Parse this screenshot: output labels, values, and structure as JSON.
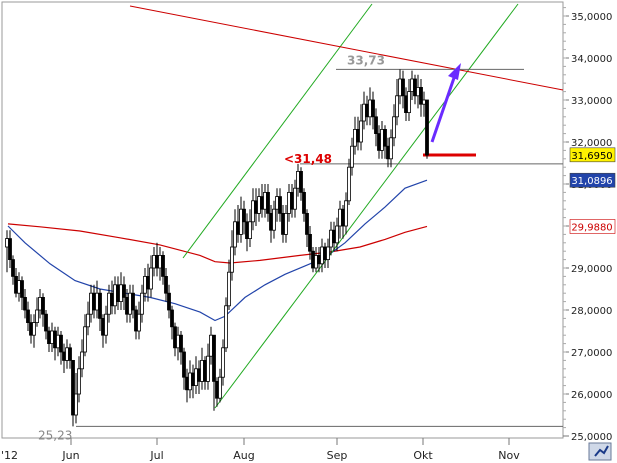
{
  "chart_data": {
    "type": "candlestick",
    "title": "",
    "xlabel": "",
    "ylabel": "",
    "ylim": [
      24.9,
      35.4
    ],
    "y_ticks": [
      {
        "value": 25,
        "label": "25,0000"
      },
      {
        "value": 26,
        "label": "26,0000"
      },
      {
        "value": 27,
        "label": "27,0000"
      },
      {
        "value": 28,
        "label": "28,0000"
      },
      {
        "value": 29,
        "label": "29,0000"
      },
      {
        "value": 30,
        "label": "30,0000"
      },
      {
        "value": 31,
        "label": "31,0000"
      },
      {
        "value": 32,
        "label": "32,0000"
      },
      {
        "value": 33,
        "label": "33,0000"
      },
      {
        "value": 34,
        "label": "34,0000"
      },
      {
        "value": 35,
        "label": "35,0000"
      }
    ],
    "x_ticks": [
      "'12",
      "Jun",
      "Jul",
      "Aug",
      "Sep",
      "Okt",
      "Nov"
    ],
    "badges": [
      {
        "name": "last-price",
        "label": "31,6950",
        "value": 31.695,
        "bg": "#fff200",
        "fg": "#000000"
      },
      {
        "name": "ma-short",
        "label": "31,0896",
        "value": 31.0896,
        "bg": "#2244aa",
        "fg": "#ffffff"
      },
      {
        "name": "ma-long",
        "label": "29,9880",
        "value": 29.988,
        "bg": "#ffffff",
        "fg": "#cc0000"
      }
    ],
    "annotations": [
      {
        "name": "high-label",
        "text": "33,73",
        "value": 33.73,
        "color": "#999999"
      },
      {
        "name": "support-label",
        "text": "<31,48",
        "value": 31.48,
        "color": "#dd0000"
      },
      {
        "name": "low-label",
        "text": "25,23",
        "value": 25.23,
        "color": "#888888"
      }
    ],
    "series_colors": {
      "candles": "#000000",
      "ma_short": "#2244aa",
      "ma_long": "#cc0000",
      "channel": "#22aa22",
      "trend": "#cc0000",
      "arrow": "#6a2bff",
      "support": "#dd0000"
    },
    "ma_short": [
      [
        8,
        30.0
      ],
      [
        25,
        29.6
      ],
      [
        50,
        29.1
      ],
      [
        75,
        28.7
      ],
      [
        100,
        28.5
      ],
      [
        125,
        28.4
      ],
      [
        150,
        28.3
      ],
      [
        175,
        28.15
      ],
      [
        200,
        27.95
      ],
      [
        215,
        27.75
      ],
      [
        225,
        27.85
      ],
      [
        245,
        28.3
      ],
      [
        265,
        28.6
      ],
      [
        285,
        28.85
      ],
      [
        305,
        29.05
      ],
      [
        325,
        29.25
      ],
      [
        345,
        29.6
      ],
      [
        365,
        30.05
      ],
      [
        385,
        30.45
      ],
      [
        405,
        30.9
      ],
      [
        427,
        31.09
      ]
    ],
    "ma_long": [
      [
        8,
        30.05
      ],
      [
        40,
        29.98
      ],
      [
        80,
        29.88
      ],
      [
        120,
        29.72
      ],
      [
        160,
        29.55
      ],
      [
        200,
        29.3
      ],
      [
        215,
        29.15
      ],
      [
        230,
        29.12
      ],
      [
        260,
        29.18
      ],
      [
        300,
        29.3
      ],
      [
        330,
        29.38
      ],
      [
        360,
        29.5
      ],
      [
        385,
        29.68
      ],
      [
        405,
        29.85
      ],
      [
        427,
        29.99
      ]
    ],
    "candles": [
      [
        7,
        29.5,
        29.7,
        29.9,
        28.9
      ],
      [
        10,
        29.7,
        29.2,
        29.9,
        29.0
      ],
      [
        13,
        29.2,
        28.8,
        29.3,
        28.6
      ],
      [
        16,
        28.8,
        28.4,
        29.0,
        28.3
      ],
      [
        19,
        28.4,
        28.7,
        28.9,
        28.2
      ],
      [
        22,
        28.7,
        28.3,
        28.8,
        28.0
      ],
      [
        25,
        28.3,
        28.0,
        28.5,
        27.8
      ],
      [
        28,
        28.0,
        27.7,
        28.2,
        27.5
      ],
      [
        31,
        27.7,
        27.4,
        27.9,
        27.2
      ],
      [
        34,
        27.4,
        27.7,
        27.9,
        27.1
      ],
      [
        37,
        27.7,
        28.0,
        28.3,
        27.6
      ],
      [
        40,
        28.0,
        28.3,
        28.5,
        27.8
      ],
      [
        43,
        28.3,
        27.9,
        28.4,
        27.6
      ],
      [
        46,
        27.9,
        27.5,
        28.0,
        27.3
      ],
      [
        49,
        27.5,
        27.2,
        27.6,
        27.0
      ],
      [
        52,
        27.2,
        27.5,
        27.7,
        27.0
      ],
      [
        55,
        27.5,
        27.1,
        27.6,
        26.8
      ],
      [
        58,
        27.1,
        27.4,
        27.6,
        26.9
      ],
      [
        61,
        27.4,
        27.0,
        27.5,
        26.7
      ],
      [
        64,
        27.0,
        26.8,
        27.2,
        26.5
      ],
      [
        67,
        26.8,
        27.1,
        27.3,
        26.6
      ],
      [
        70,
        27.1,
        26.8,
        27.2,
        26.6
      ],
      [
        73,
        26.8,
        25.5,
        26.8,
        25.23
      ],
      [
        76,
        25.5,
        26.0,
        26.5,
        25.3
      ],
      [
        79,
        26.0,
        26.6,
        26.9,
        25.8
      ],
      [
        82,
        26.6,
        27.0,
        27.3,
        26.4
      ],
      [
        85,
        27.0,
        27.6,
        27.9,
        26.9
      ],
      [
        88,
        27.6,
        27.9,
        28.2,
        27.4
      ],
      [
        91,
        27.9,
        28.4,
        28.6,
        27.7
      ],
      [
        94,
        28.4,
        28.0,
        28.6,
        27.8
      ],
      [
        97,
        28.0,
        28.4,
        28.7,
        27.8
      ],
      [
        100,
        28.4,
        27.8,
        28.5,
        27.5
      ],
      [
        103,
        27.8,
        27.4,
        27.9,
        27.1
      ],
      [
        106,
        27.4,
        27.9,
        28.1,
        27.2
      ],
      [
        109,
        27.9,
        28.4,
        28.6,
        27.7
      ],
      [
        112,
        28.4,
        28.1,
        28.7,
        27.9
      ],
      [
        115,
        28.1,
        28.6,
        28.8,
        27.9
      ],
      [
        118,
        28.6,
        28.2,
        28.8,
        28.0
      ],
      [
        121,
        28.2,
        28.6,
        28.9,
        28.0
      ],
      [
        124,
        28.6,
        28.3,
        28.8,
        28.0
      ],
      [
        127,
        28.3,
        27.9,
        28.5,
        27.7
      ],
      [
        130,
        27.9,
        28.4,
        28.6,
        27.7
      ],
      [
        133,
        28.4,
        28.0,
        28.6,
        27.8
      ],
      [
        136,
        28.0,
        27.5,
        28.1,
        27.3
      ],
      [
        139,
        27.5,
        27.9,
        28.2,
        27.3
      ],
      [
        142,
        27.9,
        28.4,
        28.6,
        27.7
      ],
      [
        145,
        28.4,
        28.8,
        29.0,
        28.2
      ],
      [
        148,
        28.8,
        28.5,
        29.1,
        28.2
      ],
      [
        151,
        28.5,
        29.0,
        29.3,
        28.3
      ],
      [
        154,
        29.0,
        29.3,
        29.5,
        28.8
      ],
      [
        157,
        29.3,
        29.0,
        29.6,
        28.8
      ],
      [
        160,
        29.0,
        29.3,
        29.5,
        28.7
      ],
      [
        163,
        29.3,
        28.8,
        29.4,
        28.6
      ],
      [
        166,
        28.8,
        28.4,
        29.0,
        28.2
      ],
      [
        169,
        28.4,
        28.0,
        28.6,
        27.8
      ],
      [
        172,
        28.0,
        27.6,
        28.1,
        27.3
      ],
      [
        175,
        27.6,
        27.1,
        27.7,
        26.9
      ],
      [
        178,
        27.1,
        27.4,
        27.6,
        26.8
      ],
      [
        181,
        27.4,
        27.0,
        27.5,
        26.7
      ],
      [
        184,
        27.0,
        26.4,
        27.1,
        26.1
      ],
      [
        187,
        26.4,
        26.1,
        26.6,
        25.8
      ],
      [
        190,
        26.1,
        26.5,
        26.8,
        25.9
      ],
      [
        193,
        26.5,
        26.2,
        26.7,
        25.9
      ],
      [
        196,
        26.2,
        26.6,
        26.9,
        26.0
      ],
      [
        199,
        26.6,
        26.3,
        26.8,
        26.0
      ],
      [
        202,
        26.3,
        26.8,
        27.1,
        26.1
      ],
      [
        205,
        26.8,
        26.3,
        26.9,
        26.1
      ],
      [
        208,
        26.3,
        26.9,
        27.2,
        26.1
      ],
      [
        211,
        26.9,
        27.4,
        27.6,
        26.7
      ],
      [
        214,
        27.4,
        26.3,
        27.4,
        25.6
      ],
      [
        217,
        26.3,
        25.9,
        26.4,
        25.7
      ],
      [
        220,
        25.9,
        26.4,
        26.6,
        25.8
      ],
      [
        223,
        26.4,
        27.1,
        27.3,
        26.2
      ],
      [
        226,
        27.1,
        28.1,
        28.3,
        27.0
      ],
      [
        229,
        28.1,
        28.9,
        29.2,
        28.0
      ],
      [
        232,
        28.9,
        29.5,
        29.9,
        28.7
      ],
      [
        235,
        29.5,
        30.1,
        30.4,
        29.3
      ],
      [
        238,
        30.1,
        29.8,
        30.5,
        29.6
      ],
      [
        241,
        29.8,
        30.4,
        30.7,
        29.6
      ],
      [
        244,
        30.4,
        30.1,
        30.6,
        29.8
      ],
      [
        247,
        30.1,
        29.7,
        30.3,
        29.4
      ],
      [
        250,
        29.7,
        30.1,
        30.4,
        29.5
      ],
      [
        253,
        30.1,
        30.6,
        30.9,
        29.9
      ],
      [
        256,
        30.6,
        30.3,
        30.9,
        30.0
      ],
      [
        259,
        30.3,
        30.7,
        30.9,
        30.1
      ],
      [
        262,
        30.7,
        30.4,
        31.0,
        30.2
      ],
      [
        265,
        30.4,
        30.8,
        31.0,
        30.2
      ],
      [
        268,
        30.8,
        30.3,
        31.0,
        30.1
      ],
      [
        271,
        30.3,
        29.9,
        30.5,
        29.6
      ],
      [
        274,
        29.9,
        30.4,
        30.6,
        29.7
      ],
      [
        277,
        30.4,
        30.7,
        30.9,
        30.1
      ],
      [
        280,
        30.7,
        30.3,
        30.9,
        30.1
      ],
      [
        283,
        30.3,
        29.8,
        30.5,
        29.6
      ],
      [
        286,
        29.8,
        30.3,
        30.5,
        29.6
      ],
      [
        289,
        30.3,
        30.8,
        31.0,
        30.1
      ],
      [
        292,
        30.8,
        30.4,
        31.0,
        30.2
      ],
      [
        295,
        30.4,
        30.9,
        31.1,
        30.2
      ],
      [
        298,
        30.9,
        31.3,
        31.48,
        30.7
      ],
      [
        301,
        31.3,
        30.8,
        31.4,
        30.6
      ],
      [
        304,
        30.8,
        30.3,
        30.9,
        30.1
      ],
      [
        307,
        30.3,
        29.8,
        30.4,
        29.5
      ],
      [
        310,
        29.8,
        29.4,
        30.0,
        29.2
      ],
      [
        313,
        29.4,
        29.0,
        29.5,
        28.9
      ],
      [
        316,
        29.0,
        29.3,
        29.5,
        28.9
      ],
      [
        319,
        29.3,
        29.1,
        29.5,
        28.9
      ],
      [
        322,
        29.1,
        29.5,
        29.7,
        28.9
      ],
      [
        325,
        29.5,
        29.2,
        29.6,
        29.0
      ],
      [
        328,
        29.2,
        29.5,
        29.7,
        29.0
      ],
      [
        331,
        29.5,
        29.9,
        30.1,
        29.3
      ],
      [
        334,
        29.9,
        29.6,
        30.1,
        29.4
      ],
      [
        337,
        29.6,
        30.0,
        30.2,
        29.4
      ],
      [
        340,
        30.0,
        30.4,
        30.6,
        29.7
      ],
      [
        343,
        30.4,
        30.0,
        30.5,
        29.7
      ],
      [
        346,
        30.0,
        30.6,
        30.8,
        29.8
      ],
      [
        349,
        30.6,
        31.4,
        31.6,
        30.5
      ],
      [
        352,
        31.4,
        31.9,
        32.1,
        31.2
      ],
      [
        355,
        31.9,
        32.3,
        32.6,
        31.7
      ],
      [
        358,
        32.3,
        32.0,
        32.6,
        31.8
      ],
      [
        361,
        32.0,
        32.5,
        32.9,
        31.8
      ],
      [
        364,
        32.5,
        32.9,
        33.2,
        32.3
      ],
      [
        367,
        32.9,
        32.6,
        33.1,
        32.4
      ],
      [
        370,
        32.6,
        33.0,
        33.3,
        32.4
      ],
      [
        373,
        33.0,
        32.6,
        33.2,
        32.3
      ],
      [
        376,
        32.6,
        32.2,
        32.8,
        31.9
      ],
      [
        379,
        32.2,
        31.8,
        32.4,
        31.6
      ],
      [
        382,
        31.8,
        32.3,
        32.5,
        31.6
      ],
      [
        385,
        32.3,
        31.9,
        32.4,
        31.6
      ],
      [
        388,
        31.9,
        31.6,
        32.1,
        31.4
      ],
      [
        391,
        31.6,
        32.1,
        32.3,
        31.4
      ],
      [
        394,
        32.1,
        32.6,
        32.9,
        31.9
      ],
      [
        397,
        32.6,
        33.1,
        33.5,
        32.4
      ],
      [
        400,
        33.1,
        33.5,
        33.73,
        32.9
      ],
      [
        403,
        33.5,
        33.1,
        33.7,
        32.8
      ],
      [
        406,
        33.1,
        32.7,
        33.3,
        32.5
      ],
      [
        409,
        32.7,
        33.2,
        33.5,
        32.5
      ],
      [
        412,
        33.2,
        33.5,
        33.7,
        33.0
      ],
      [
        415,
        33.5,
        33.1,
        33.6,
        32.9
      ],
      [
        418,
        33.1,
        33.3,
        33.6,
        32.8
      ],
      [
        421,
        33.3,
        32.9,
        33.5,
        32.6
      ],
      [
        424,
        32.9,
        33.0,
        33.2,
        32.6
      ],
      [
        427,
        33.0,
        31.69,
        33.0,
        31.6
      ]
    ]
  }
}
